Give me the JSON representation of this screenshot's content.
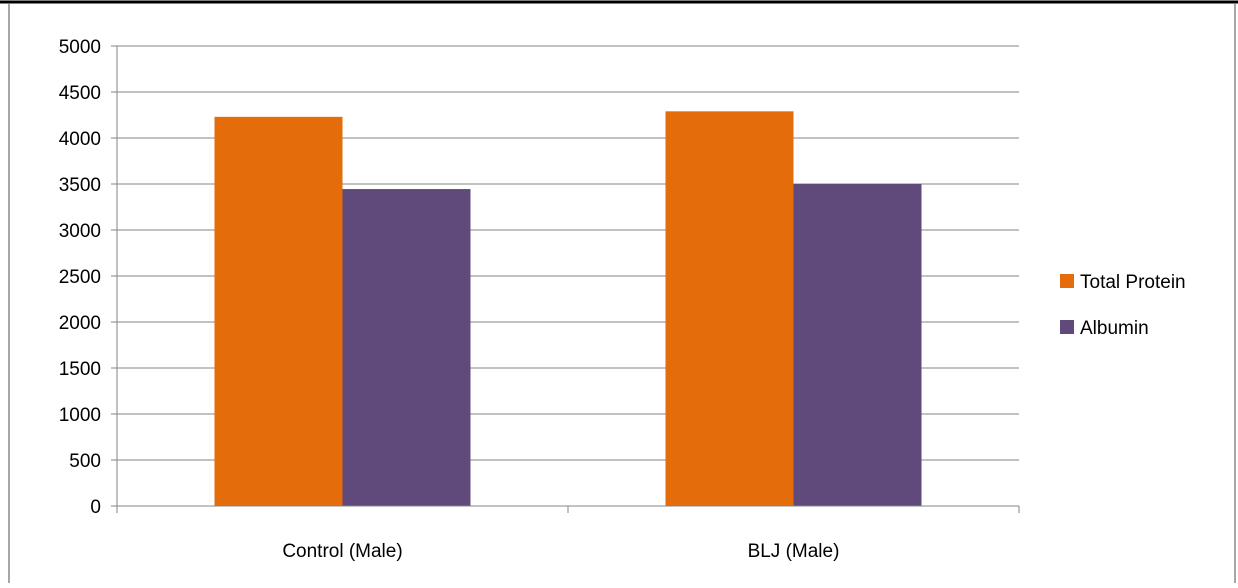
{
  "chart_data": {
    "type": "bar",
    "categories": [
      "Control (Male)",
      "BLJ (Male)"
    ],
    "series": [
      {
        "name": "Total Protein",
        "values": [
          4230,
          4290
        ],
        "color": "#E46C0A"
      },
      {
        "name": "Albumin",
        "values": [
          3445,
          3500
        ],
        "color": "#604A7B"
      }
    ],
    "ylim": [
      0,
      5000
    ],
    "yticks": [
      0,
      500,
      1000,
      1500,
      2000,
      2500,
      3000,
      3500,
      4000,
      4500,
      5000
    ],
    "grid": true,
    "legend_position": "right",
    "title": "",
    "xlabel": "",
    "ylabel": ""
  }
}
